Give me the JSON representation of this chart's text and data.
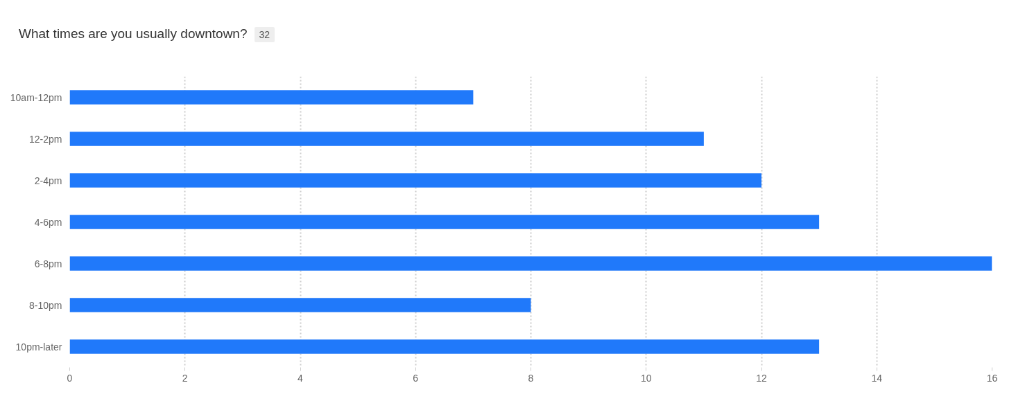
{
  "chart_data": {
    "type": "bar",
    "orientation": "horizontal",
    "title": "What times are you usually downtown?",
    "annotations": [
      "32"
    ],
    "categories": [
      "10am-12pm",
      "12-2pm",
      "2-4pm",
      "4-6pm",
      "6-8pm",
      "8-10pm",
      "10pm-later"
    ],
    "values": [
      7,
      11,
      12,
      13,
      16,
      8,
      13
    ],
    "color": "#2079fa",
    "xlim": [
      0,
      16
    ],
    "xticks": [
      0,
      2,
      4,
      6,
      8,
      10,
      12,
      14,
      16
    ],
    "grid": "x"
  }
}
